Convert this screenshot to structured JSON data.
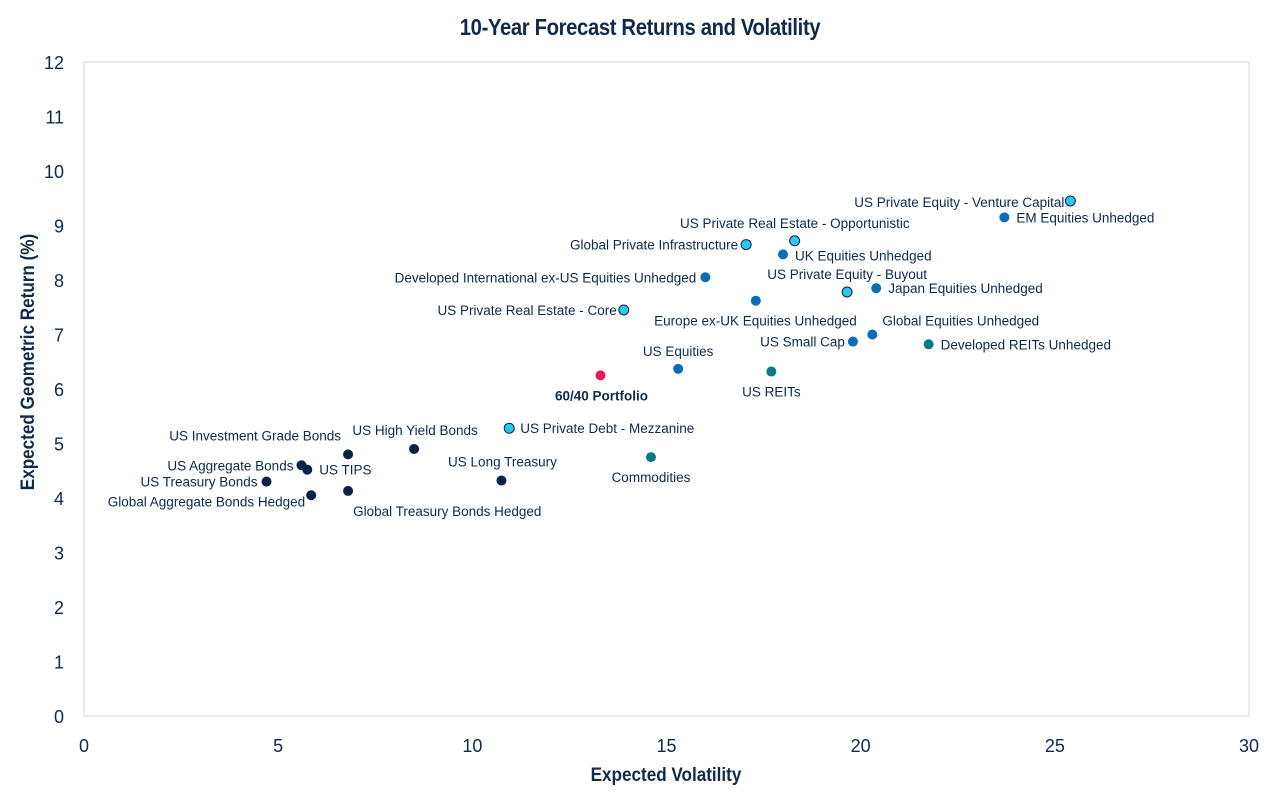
{
  "colors": {
    "navy": "#0b2244",
    "blue": "#0a6db8",
    "cyan": "#2cc6ee",
    "teal": "#0a7a86",
    "red": "#e8185d",
    "frame": "#d6d6d6",
    "text": "#0f2a4a"
  },
  "chart_data": {
    "type": "scatter",
    "title": "10-Year Forecast Returns and Volatility",
    "xlabel": "Expected Volatility",
    "ylabel": "Expected Geometric Return (%)",
    "xlim": [
      0,
      30
    ],
    "ylim": [
      0,
      12
    ],
    "xticks": [
      0,
      5,
      10,
      15,
      20,
      25,
      30
    ],
    "yticks": [
      0,
      1,
      2,
      3,
      4,
      5,
      6,
      7,
      8,
      9,
      10,
      11,
      12
    ],
    "grid": false,
    "legend": "none",
    "points": [
      {
        "name": "US Private Equity - Venture Capital",
        "x": 25.4,
        "y": 9.45,
        "group": "cyan",
        "anchor": "end",
        "dx": -6,
        "dy": 6
      },
      {
        "name": "EM Equities Unhedged",
        "x": 23.7,
        "y": 9.15,
        "group": "blue",
        "anchor": "start",
        "dx": 12,
        "dy": 5
      },
      {
        "name": "US Private Real Estate - Opportunistic",
        "x": 18.3,
        "y": 8.72,
        "group": "cyan",
        "anchor": "end",
        "dx": 115,
        "dy": -13
      },
      {
        "name": "Global Private Infrastructure",
        "x": 17.05,
        "y": 8.65,
        "group": "cyan",
        "anchor": "end",
        "dx": -8,
        "dy": 5
      },
      {
        "name": "UK Equities Unhedged",
        "x": 18.0,
        "y": 8.47,
        "group": "blue",
        "anchor": "start",
        "dx": 12,
        "dy": 6
      },
      {
        "name": "Developed International ex-US Equities Unhedged",
        "x": 16.0,
        "y": 8.05,
        "group": "blue",
        "anchor": "end",
        "dx": -9,
        "dy": 5
      },
      {
        "name": "US Private Equity - Buyout",
        "x": 19.65,
        "y": 7.78,
        "group": "cyan",
        "anchor": "end",
        "dx": 80,
        "dy": -13
      },
      {
        "name": "Japan Equities Unhedged",
        "x": 20.4,
        "y": 7.85,
        "group": "blue",
        "anchor": "start",
        "dx": 12,
        "dy": 5
      },
      {
        "name": "Europe ex-UK Equities Unhedged",
        "x": 17.3,
        "y": 7.62,
        "group": "blue",
        "anchor": "end",
        "dx": 101,
        "dy": 25
      },
      {
        "name": "US Private Real Estate - Core",
        "x": 13.9,
        "y": 7.45,
        "group": "cyan",
        "anchor": "end",
        "dx": -7,
        "dy": 5
      },
      {
        "name": "Global Equities Unhedged",
        "x": 20.3,
        "y": 7.0,
        "group": "blue",
        "anchor": "start",
        "dx": 10,
        "dy": -9
      },
      {
        "name": "Developed REITs Unhedged",
        "x": 21.75,
        "y": 6.82,
        "group": "teal",
        "anchor": "start",
        "dx": 12,
        "dy": 5
      },
      {
        "name": "US Small Cap",
        "x": 19.8,
        "y": 6.87,
        "group": "blue",
        "anchor": "end",
        "dx": -8,
        "dy": 5
      },
      {
        "name": "US Equities",
        "x": 15.3,
        "y": 6.37,
        "group": "blue",
        "anchor": "middle",
        "dx": 0,
        "dy": -13
      },
      {
        "name": "US REITs",
        "x": 17.7,
        "y": 6.32,
        "group": "teal",
        "anchor": "middle",
        "dx": 0,
        "dy": 25
      },
      {
        "name": "60/40 Portfolio",
        "x": 13.3,
        "y": 6.25,
        "group": "red",
        "anchor": "middle",
        "dx": 1,
        "dy": 25,
        "bold": true
      },
      {
        "name": "US Private Debt - Mezzanine",
        "x": 10.95,
        "y": 5.28,
        "group": "cyan",
        "anchor": "start",
        "dx": 11,
        "dy": 5
      },
      {
        "name": "Commodities",
        "x": 14.6,
        "y": 4.75,
        "group": "teal",
        "anchor": "middle",
        "dx": 0,
        "dy": 25
      },
      {
        "name": "US High Yield Bonds",
        "x": 8.5,
        "y": 4.9,
        "group": "navy",
        "anchor": "middle",
        "dx": 1,
        "dy": -14
      },
      {
        "name": "US Investment Grade Bonds",
        "x": 6.8,
        "y": 4.8,
        "group": "navy",
        "anchor": "end",
        "dx": -7,
        "dy": -14
      },
      {
        "name": "US Long Treasury",
        "x": 10.75,
        "y": 4.32,
        "group": "navy",
        "anchor": "middle",
        "dx": 1,
        "dy": -14
      },
      {
        "name": "US Aggregate Bonds",
        "x": 5.6,
        "y": 4.6,
        "group": "navy",
        "anchor": "end",
        "dx": -8,
        "dy": 5
      },
      {
        "name": "US TIPS",
        "x": 5.75,
        "y": 4.52,
        "group": "navy",
        "anchor": "start",
        "dx": 12,
        "dy": 5
      },
      {
        "name": "US Treasury Bonds",
        "x": 4.7,
        "y": 4.3,
        "group": "navy",
        "anchor": "end",
        "dx": -9,
        "dy": 5
      },
      {
        "name": "Global Aggregate Bonds Hedged",
        "x": 5.85,
        "y": 4.05,
        "group": "navy",
        "anchor": "end",
        "dx": -6,
        "dy": 11
      },
      {
        "name": "Global Treasury Bonds Hedged",
        "x": 6.8,
        "y": 4.13,
        "group": "navy",
        "anchor": "start",
        "dx": 5,
        "dy": 25
      }
    ]
  }
}
